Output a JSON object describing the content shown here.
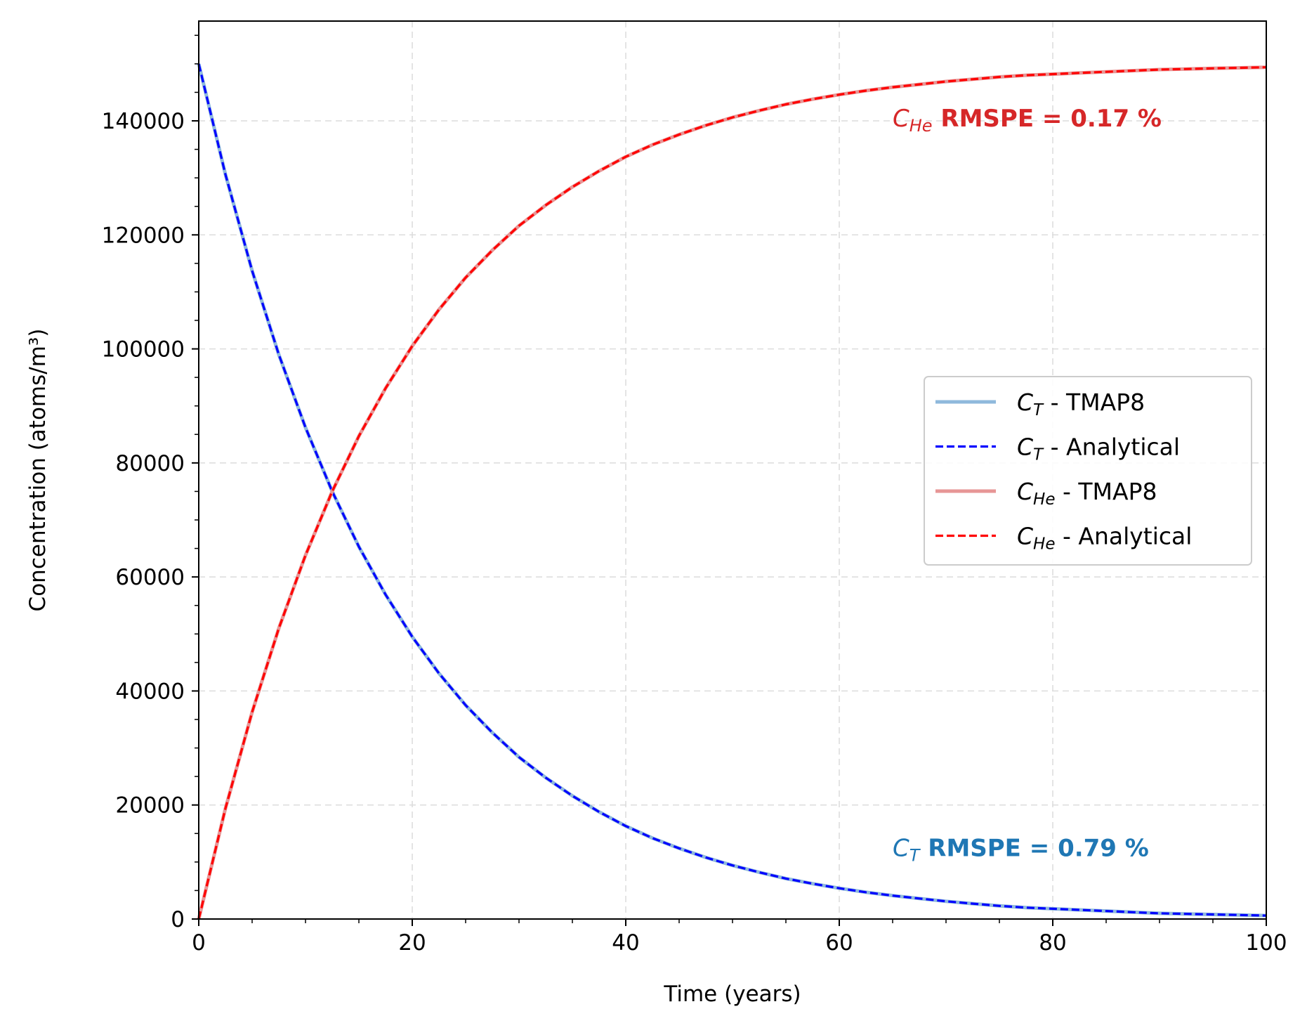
{
  "chart_data": {
    "type": "line",
    "xlabel": "Time (years)",
    "ylabel": "Concentration (atoms/m³)",
    "xlim": [
      0,
      100
    ],
    "ylim": [
      0,
      157500
    ],
    "xticks": [
      0,
      20,
      40,
      60,
      80,
      100
    ],
    "yticks": [
      0,
      20000,
      40000,
      60000,
      80000,
      100000,
      120000,
      140000
    ],
    "grid": true,
    "legend_position": "center-right",
    "x": [
      0,
      2.5,
      5,
      7.5,
      10,
      12.5,
      15,
      17.5,
      20,
      22.5,
      25,
      27.5,
      30,
      32.5,
      35,
      37.5,
      40,
      42.5,
      45,
      47.5,
      50,
      52.5,
      55,
      57.5,
      60,
      62.5,
      65,
      67.5,
      70,
      72.5,
      75,
      77.5,
      80,
      82.5,
      85,
      87.5,
      90,
      92.5,
      95,
      97.5,
      100
    ],
    "series": [
      {
        "name": "C_T - TMAP8",
        "symbol": "C",
        "subscript": "T",
        "suffix": " - TMAP8",
        "color": "#8fb9dc",
        "style": "solid",
        "values": [
          150000,
          130600,
          113700,
          99000,
          86200,
          75000,
          65300,
          56900,
          49500,
          43100,
          37500,
          32700,
          28400,
          24800,
          21600,
          18800,
          16300,
          14200,
          12400,
          10800,
          9400,
          8200,
          7100,
          6200,
          5400,
          4700,
          4100,
          3600,
          3100,
          2700,
          2300,
          2000,
          1800,
          1600,
          1400,
          1200,
          1000,
          900,
          800,
          700,
          600
        ]
      },
      {
        "name": "C_T - Analytical",
        "symbol": "C",
        "subscript": "T",
        "suffix": " - Analytical",
        "color": "#0000ff",
        "style": "dashed",
        "values": [
          150000,
          130600,
          113700,
          99000,
          86200,
          75000,
          65300,
          56900,
          49500,
          43100,
          37500,
          32700,
          28400,
          24800,
          21600,
          18800,
          16300,
          14200,
          12400,
          10800,
          9400,
          8200,
          7100,
          6200,
          5400,
          4700,
          4100,
          3600,
          3100,
          2700,
          2300,
          2000,
          1800,
          1600,
          1400,
          1200,
          1000,
          900,
          800,
          700,
          600
        ]
      },
      {
        "name": "C_He - TMAP8",
        "symbol": "C",
        "subscript": "He",
        "suffix": " - TMAP8",
        "color": "#e79696",
        "style": "solid",
        "values": [
          0,
          19400,
          36300,
          51000,
          63800,
          75000,
          84700,
          93100,
          100500,
          106900,
          112500,
          117300,
          121600,
          125200,
          128400,
          131200,
          133700,
          135800,
          137600,
          139200,
          140600,
          141800,
          142900,
          143800,
          144600,
          145300,
          145900,
          146400,
          146900,
          147300,
          147700,
          148000,
          148200,
          148400,
          148600,
          148800,
          149000,
          149100,
          149200,
          149300,
          149400
        ]
      },
      {
        "name": "C_He - Analytical",
        "symbol": "C",
        "subscript": "He",
        "suffix": " - Analytical",
        "color": "#ff0000",
        "style": "dashed",
        "values": [
          0,
          19400,
          36300,
          51000,
          63800,
          75000,
          84700,
          93100,
          100500,
          106900,
          112500,
          117300,
          121600,
          125200,
          128400,
          131200,
          133700,
          135800,
          137600,
          139200,
          140600,
          141800,
          142900,
          143800,
          144600,
          145300,
          145900,
          146400,
          146900,
          147300,
          147700,
          148000,
          148200,
          148400,
          148600,
          148800,
          149000,
          149100,
          149200,
          149300,
          149400
        ]
      }
    ],
    "annotations": [
      {
        "symbol": "C",
        "subscript": "He",
        "text": " RMSPE = 0.17 %",
        "x": 65,
        "y": 139000,
        "color": "#d62728"
      },
      {
        "symbol": "C",
        "subscript": "T",
        "text": " RMSPE = 0.79 %",
        "x": 65,
        "y": 11000,
        "color": "#1f77b4"
      }
    ]
  }
}
